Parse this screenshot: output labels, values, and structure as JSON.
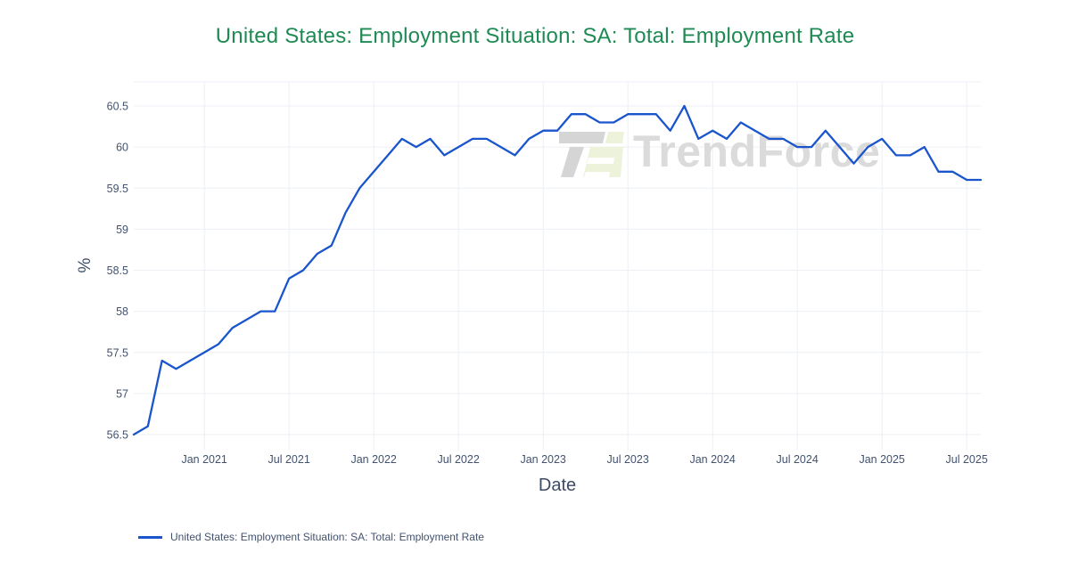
{
  "page_title": "United States: Employment Situation: SA: Total: Employment Rate",
  "colors": {
    "title": "#1f8a53",
    "axis_text": "#42526e",
    "axis_title_text": "#3c4b66",
    "grid": "#eceff4",
    "line": "#1a55cc",
    "watermark_text": "#dbdbdb",
    "watermark_logo_gray": "#d5d5d5",
    "watermark_logo_green": "#edf2da",
    "background": "#ffffff"
  },
  "watermark": {
    "text": "TrendForce"
  },
  "chart_data": {
    "type": "line",
    "title": "United States: Employment Situation: SA: Total: Employment Rate",
    "xlabel": "Date",
    "ylabel": "%",
    "grid": true,
    "legend_position": "bottom-left",
    "ylim": [
      56.4,
      60.8
    ],
    "y_tick_labels": [
      "56.5",
      "57",
      "57.5",
      "58",
      "58.5",
      "59",
      "59.5",
      "60",
      "60.5"
    ],
    "x_tick_labels": [
      "Jan 2021",
      "Jul 2021",
      "Jan 2022",
      "Jul 2022",
      "Jan 2023",
      "Jul 2023",
      "Jan 2024",
      "Jul 2024",
      "Jan 2025",
      "Jul 2025"
    ],
    "series": [
      {
        "name": "United States: Employment Situation: SA: Total: Employment Rate",
        "color": "#1a55cc",
        "x": [
          "2020-08",
          "2020-09",
          "2020-10",
          "2020-11",
          "2020-12",
          "2021-01",
          "2021-02",
          "2021-03",
          "2021-04",
          "2021-05",
          "2021-06",
          "2021-07",
          "2021-08",
          "2021-09",
          "2021-10",
          "2021-11",
          "2021-12",
          "2022-01",
          "2022-02",
          "2022-03",
          "2022-04",
          "2022-05",
          "2022-06",
          "2022-07",
          "2022-08",
          "2022-09",
          "2022-10",
          "2022-11",
          "2022-12",
          "2023-01",
          "2023-02",
          "2023-03",
          "2023-04",
          "2023-05",
          "2023-06",
          "2023-07",
          "2023-08",
          "2023-09",
          "2023-10",
          "2023-11",
          "2023-12",
          "2024-01",
          "2024-02",
          "2024-03",
          "2024-04",
          "2024-05",
          "2024-06",
          "2024-07",
          "2024-08",
          "2024-09",
          "2024-10",
          "2024-11",
          "2024-12",
          "2025-01",
          "2025-02",
          "2025-03",
          "2025-04",
          "2025-05",
          "2025-06",
          "2025-07",
          "2025-08"
        ],
        "values": [
          56.5,
          56.6,
          57.4,
          57.3,
          57.4,
          57.5,
          57.6,
          57.8,
          57.9,
          58.0,
          58.0,
          58.4,
          58.5,
          58.7,
          58.8,
          59.2,
          59.5,
          59.7,
          59.9,
          60.1,
          60.0,
          60.1,
          59.9,
          60.0,
          60.1,
          60.1,
          60.0,
          59.9,
          60.1,
          60.2,
          60.2,
          60.4,
          60.4,
          60.3,
          60.3,
          60.4,
          60.4,
          60.4,
          60.2,
          60.5,
          60.1,
          60.2,
          60.1,
          60.3,
          60.2,
          60.1,
          60.1,
          60.0,
          60.0,
          60.2,
          60.0,
          59.8,
          60.0,
          60.1,
          59.9,
          59.9,
          60.0,
          59.7,
          59.7,
          59.6,
          59.6
        ]
      }
    ]
  }
}
